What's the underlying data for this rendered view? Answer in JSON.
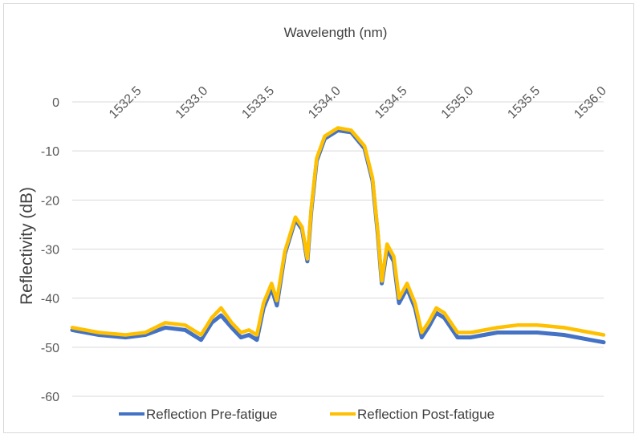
{
  "chart_data": {
    "type": "line",
    "title": "",
    "xlabel": "Wavelength (nm)",
    "ylabel": "Reflectivity (dB)",
    "x_axis_position": "top",
    "xlim": [
      1532.0,
      1536.0
    ],
    "ylim": [
      -60,
      0
    ],
    "x_ticks": [
      1532.5,
      1533.0,
      1533.5,
      1534.0,
      1534.5,
      1535.0,
      1535.5,
      1536.0
    ],
    "x_tick_labels": [
      "1532.5",
      "1533.0",
      "1533.5",
      "1534.0",
      "1534.5",
      "1535.0",
      "1535.5",
      "1536.0"
    ],
    "y_ticks": [
      0,
      -10,
      -20,
      -30,
      -40,
      -50,
      -60
    ],
    "y_tick_labels": [
      "0",
      "-10",
      "-20",
      "-30",
      "-40",
      "-50",
      "-60"
    ],
    "grid": true,
    "legend_position": "bottom",
    "series": [
      {
        "name": "Reflection Pre-fatigue",
        "color": "#4472C4",
        "x": [
          1532.0,
          1532.2,
          1532.4,
          1532.55,
          1532.7,
          1532.85,
          1532.97,
          1533.05,
          1533.12,
          1533.2,
          1533.27,
          1533.33,
          1533.39,
          1533.44,
          1533.5,
          1533.54,
          1533.6,
          1533.68,
          1533.73,
          1533.77,
          1533.8,
          1533.84,
          1533.9,
          1534.0,
          1534.1,
          1534.2,
          1534.26,
          1534.3,
          1534.33,
          1534.37,
          1534.42,
          1534.46,
          1534.52,
          1534.58,
          1534.63,
          1534.68,
          1534.74,
          1534.8,
          1534.9,
          1535.0,
          1535.1,
          1535.2,
          1535.35,
          1535.5,
          1535.7,
          1535.9,
          1536.0
        ],
        "y": [
          -46.5,
          -47.5,
          -48,
          -47.5,
          -46,
          -46.5,
          -48.5,
          -45,
          -43.5,
          -46,
          -48,
          -47.5,
          -48.5,
          -42,
          -38,
          -41.5,
          -31,
          -24,
          -26,
          -32.5,
          -22,
          -12,
          -7.5,
          -5.8,
          -6.2,
          -9.5,
          -16,
          -27,
          -37,
          -30,
          -32.5,
          -41,
          -38,
          -42,
          -48,
          -46,
          -43,
          -44,
          -48,
          -48,
          -47.5,
          -47,
          -47,
          -47,
          -47.5,
          -48.5,
          -49
        ]
      },
      {
        "name": "Reflection Post-fatigue",
        "color": "#FFC000",
        "x": [
          1532.0,
          1532.2,
          1532.4,
          1532.55,
          1532.7,
          1532.85,
          1532.97,
          1533.05,
          1533.12,
          1533.2,
          1533.27,
          1533.33,
          1533.39,
          1533.44,
          1533.5,
          1533.54,
          1533.6,
          1533.68,
          1533.73,
          1533.77,
          1533.8,
          1533.84,
          1533.9,
          1534.0,
          1534.1,
          1534.2,
          1534.26,
          1534.3,
          1534.33,
          1534.37,
          1534.42,
          1534.46,
          1534.52,
          1534.58,
          1534.63,
          1534.68,
          1534.74,
          1534.8,
          1534.9,
          1535.0,
          1535.1,
          1535.2,
          1535.35,
          1535.5,
          1535.7,
          1535.9,
          1536.0
        ],
        "y": [
          -46,
          -47,
          -47.5,
          -47,
          -45,
          -45.5,
          -47.5,
          -44,
          -42,
          -45,
          -47,
          -46.5,
          -47.5,
          -41,
          -37,
          -40.5,
          -30.5,
          -23.5,
          -25.5,
          -32,
          -21.5,
          -11.5,
          -7,
          -5.3,
          -5.8,
          -9,
          -15.5,
          -26.5,
          -36.5,
          -29,
          -31.5,
          -40,
          -37,
          -41,
          -47,
          -45,
          -42,
          -43,
          -47,
          -47,
          -46.5,
          -46,
          -45.5,
          -45.5,
          -46,
          -47,
          -47.5
        ]
      }
    ]
  }
}
